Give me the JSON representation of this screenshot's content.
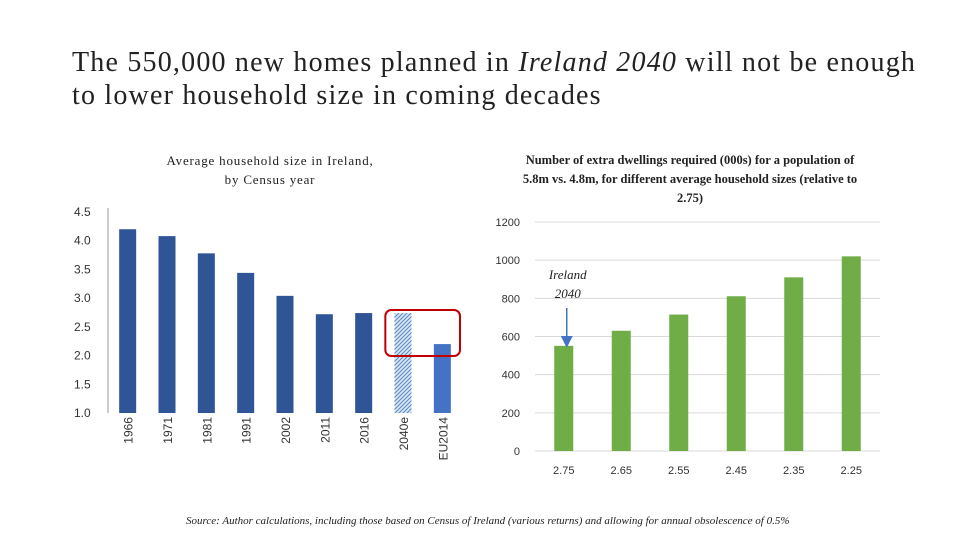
{
  "title": {
    "pre": "The 550,000 new homes planned in ",
    "italic": "Ireland 2040",
    "post": " will not be enough to lower household size in coming decades"
  },
  "chart_data": [
    {
      "type": "bar",
      "title_line1": "Average household size in Ireland,",
      "title_line2": "by Census year",
      "categories": [
        "1966",
        "1971",
        "1981",
        "1991",
        "2002",
        "2011",
        "2016",
        "2040e",
        "EU2014"
      ],
      "values": [
        4.2,
        4.08,
        3.78,
        3.44,
        3.04,
        2.72,
        2.74,
        2.74,
        2.2
      ],
      "bar_styles": [
        "solid",
        "solid",
        "solid",
        "solid",
        "solid",
        "solid",
        "solid",
        "hatched",
        "light"
      ],
      "y_ticks": [
        "4.5",
        "4.0",
        "3.5",
        "3.0",
        "2.5",
        "2.0",
        "1.5",
        "1.0"
      ],
      "ylim": [
        1.0,
        4.5
      ],
      "highlight": [
        "2040e",
        "EU2014"
      ],
      "colors": {
        "bar": "#2f5597",
        "hatched": "#9dc3e6",
        "light": "#4472c4",
        "highlight": "#c00000"
      }
    },
    {
      "type": "bar",
      "title": "Number of extra dwellings required (000s) for a population of 5.8m vs. 4.8m, for different average household sizes (relative to 2.75)",
      "categories": [
        "2.75",
        "2.65",
        "2.55",
        "2.45",
        "2.35",
        "2.25"
      ],
      "values": [
        551,
        630,
        715,
        811,
        910,
        1020
      ],
      "y_ticks": [
        "1200",
        "1000",
        "800",
        "600",
        "400",
        "200",
        "0"
      ],
      "ylim": [
        0,
        1200
      ],
      "annotation": {
        "line1": "Ireland",
        "line2": "2040",
        "target": "2.75"
      },
      "colors": {
        "bar": "#70ad47",
        "grid": "#d9d9d9",
        "arrow": "#4472c4"
      }
    }
  ],
  "source": "Source: Author calculations, including those based on Census of Ireland (various returns) and allowing for annual obsolescence of 0.5%"
}
